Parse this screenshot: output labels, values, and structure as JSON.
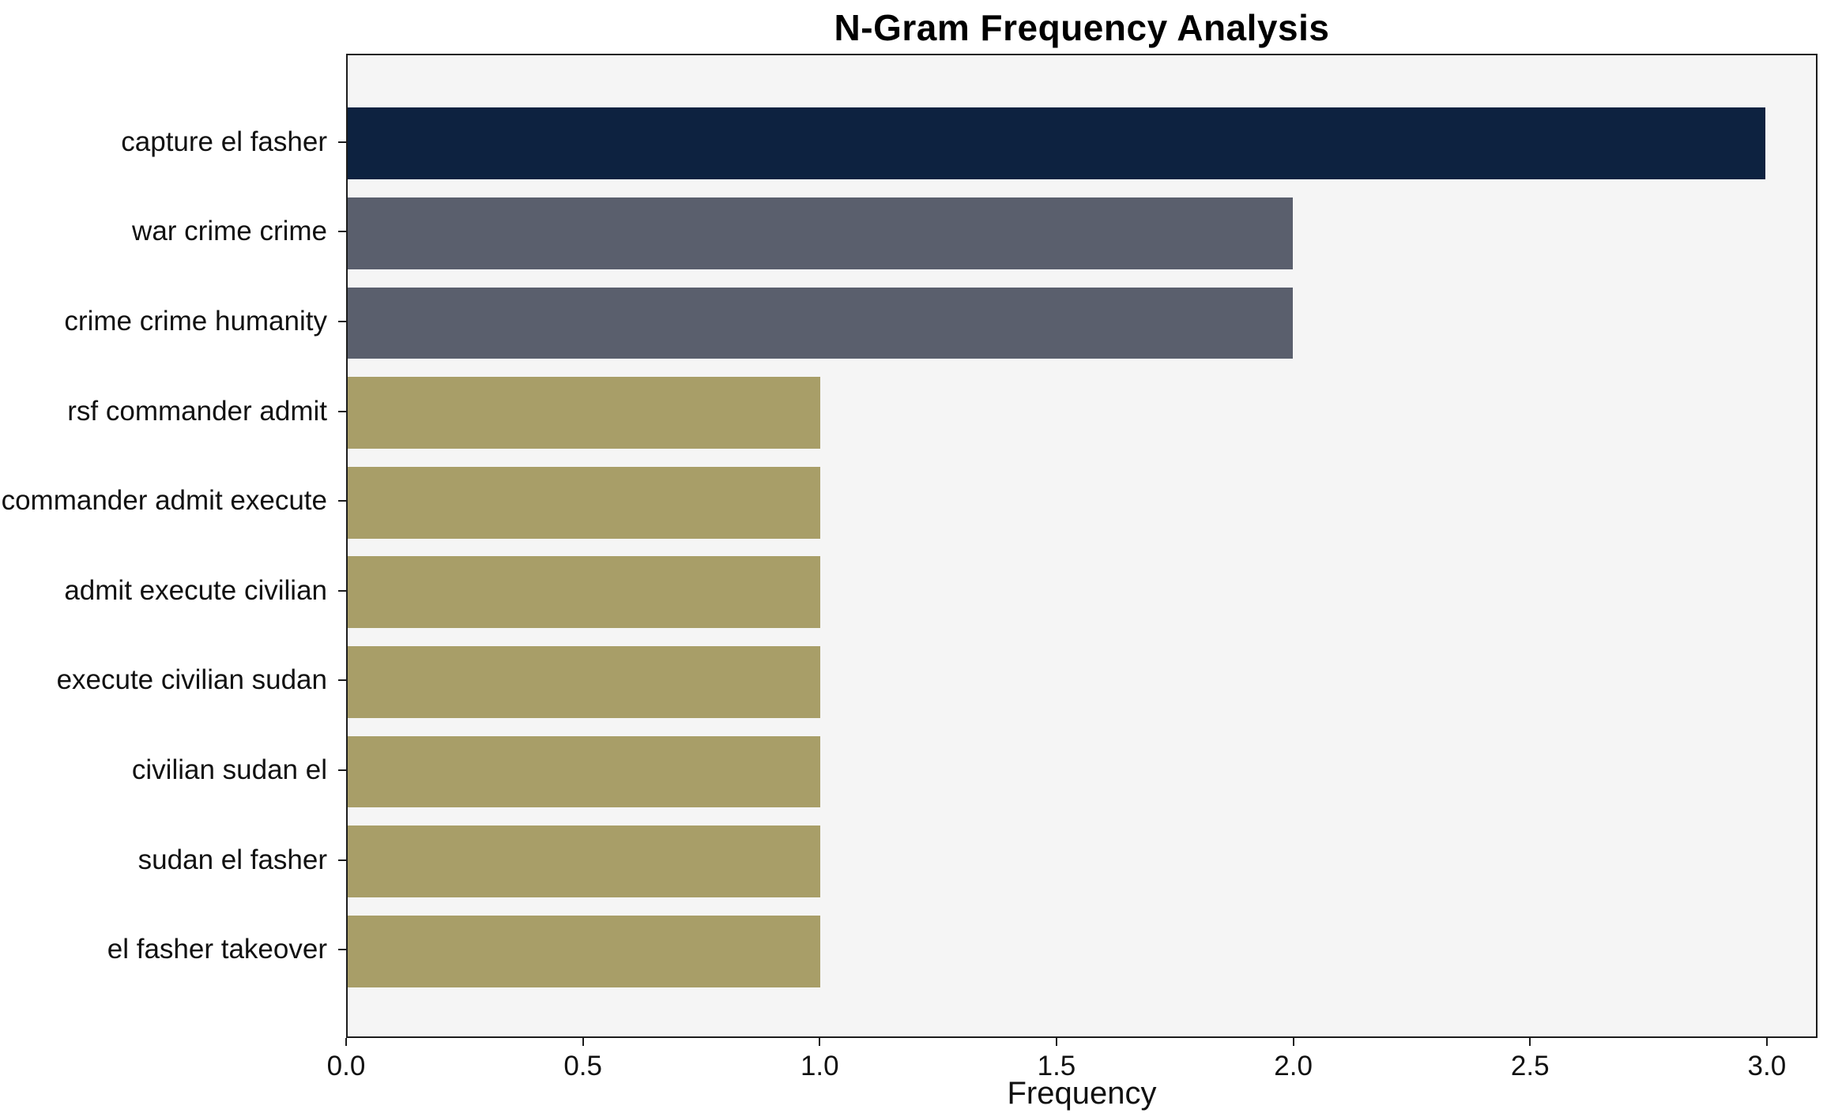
{
  "chart_data": {
    "type": "bar",
    "orientation": "horizontal",
    "title": "N-Gram Frequency Analysis",
    "xlabel": "Frequency",
    "ylabel": "",
    "categories": [
      "capture el fasher",
      "war crime crime",
      "crime crime humanity",
      "rsf commander admit",
      "commander admit execute",
      "admit execute civilian",
      "execute civilian sudan",
      "civilian sudan el",
      "sudan el fasher",
      "el fasher takeover"
    ],
    "values": [
      3,
      2,
      2,
      1,
      1,
      1,
      1,
      1,
      1,
      1
    ],
    "bar_colors": [
      "#0d2240",
      "#5a5f6d",
      "#5a5f6d",
      "#a89e68",
      "#a89e68",
      "#a89e68",
      "#a89e68",
      "#a89e68",
      "#a89e68",
      "#a89e68"
    ],
    "xlim": [
      0,
      3.107
    ],
    "xticks": [
      0.0,
      0.5,
      1.0,
      1.5,
      2.0,
      2.5,
      3.0
    ],
    "xtick_labels": [
      "0.0",
      "0.5",
      "1.0",
      "1.5",
      "2.0",
      "2.5",
      "3.0"
    ],
    "grid": false,
    "legend_visible": false,
    "plot_background": "#f5f5f5",
    "page_background": "#ffffff",
    "axis_color": "#1c1c1c"
  }
}
